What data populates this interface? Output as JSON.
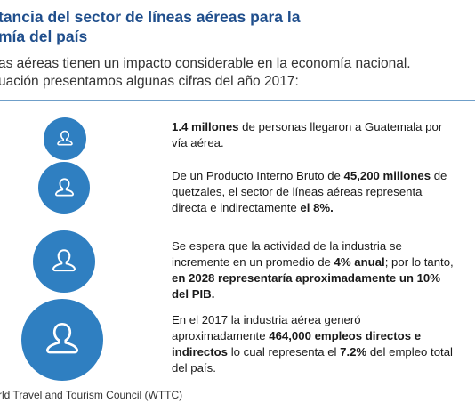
{
  "heading": {
    "line1": "tancia del sector de líneas aéreas para la",
    "line2": "mía del país"
  },
  "intro": {
    "line1": "as aéreas tienen un impacto considerable en la economía nacional.",
    "line2": "uación presentamos algunas cifras del año 2017:"
  },
  "stats": [
    {
      "icon": "person-icon",
      "parts": [
        {
          "text": "1.4 millones",
          "bold": true
        },
        {
          "text": " de personas llegaron a Guatemala por vía aérea.",
          "bold": false
        }
      ]
    },
    {
      "icon": "person-icon",
      "parts": [
        {
          "text": "De un Producto Interno Bruto de ",
          "bold": false
        },
        {
          "text": "45,200 millones",
          "bold": true
        },
        {
          "text": " de quetzales, el sector de líneas aéreas representa directa e indirectamente ",
          "bold": false
        },
        {
          "text": "el 8%.",
          "bold": true
        }
      ]
    },
    {
      "icon": "person-icon",
      "parts": [
        {
          "text": "Se espera que la actividad de la industria se incremente en un promedio de ",
          "bold": false
        },
        {
          "text": "4% anual",
          "bold": true
        },
        {
          "text": "; por lo tanto, ",
          "bold": false
        },
        {
          "text": "en 2028 representaría aproximadamente un 10% del PIB.",
          "bold": true
        }
      ]
    },
    {
      "icon": "person-icon",
      "parts": [
        {
          "text": "En el 2017 la industria aérea generó aproximadamente ",
          "bold": false
        },
        {
          "text": "464,000 empleos directos e indirectos",
          "bold": true
        },
        {
          "text": " lo cual representa el ",
          "bold": false
        },
        {
          "text": "7.2%",
          "bold": true
        },
        {
          "text": " del empleo total del país.",
          "bold": false
        }
      ]
    }
  ],
  "source": "rld Travel and Tourism Council (WTTC)",
  "colors": {
    "heading": "#1f4e8c",
    "icon_fill": "#2f7fc1",
    "divider": "#6f9fc9"
  }
}
